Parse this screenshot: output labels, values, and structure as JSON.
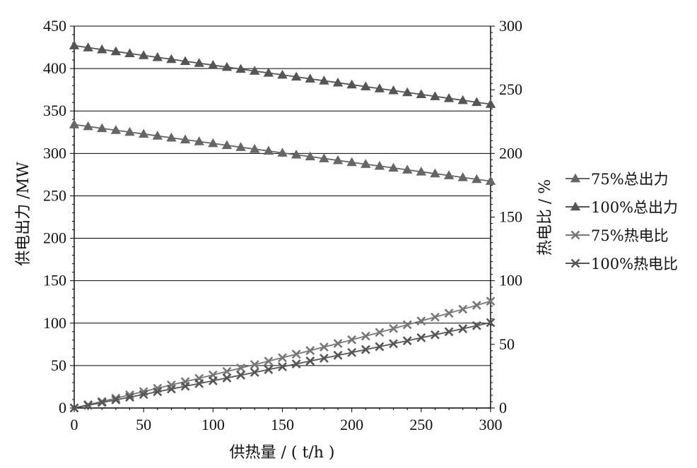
{
  "chart_data": {
    "type": "line",
    "xlabel": "供热量 / ( t/h )",
    "ylabel_left": "供电出力 /MW",
    "ylabel_right": "热电比 / %",
    "x_ticks": [
      0,
      50,
      100,
      150,
      200,
      250,
      300
    ],
    "y_left_ticks": [
      0,
      50,
      100,
      150,
      200,
      250,
      300,
      350,
      400,
      450
    ],
    "y_right_ticks": [
      0,
      50,
      100,
      150,
      200,
      250,
      300
    ],
    "xlim": [
      0,
      300
    ],
    "ylim_left": [
      0,
      450
    ],
    "ylim_right": [
      0,
      300
    ],
    "grid": "horizontal",
    "legend_position": "right",
    "x": [
      0,
      10,
      20,
      30,
      40,
      50,
      60,
      70,
      80,
      90,
      100,
      110,
      120,
      130,
      140,
      150,
      160,
      170,
      180,
      190,
      200,
      210,
      220,
      230,
      240,
      250,
      260,
      270,
      280,
      290,
      300
    ],
    "series": [
      {
        "name": "75%总出力",
        "axis": "left",
        "marker": "triangle",
        "color": "#666666",
        "values": [
          334,
          331.8,
          329.5,
          327.3,
          325.1,
          322.9,
          320.7,
          318.4,
          316.2,
          314,
          311.8,
          309.5,
          307.3,
          305.1,
          302.9,
          300.6,
          298.4,
          296.2,
          294,
          291.8,
          289.5,
          287.3,
          285.1,
          282.9,
          280.6,
          278.4,
          276.2,
          274,
          271.7,
          269.5,
          267.3
        ]
      },
      {
        "name": "100%总出力",
        "axis": "left",
        "marker": "triangle",
        "color": "#555555",
        "values": [
          427,
          424.7,
          422.4,
          420.1,
          417.8,
          415.5,
          413.2,
          410.9,
          408.6,
          406.3,
          404,
          401.7,
          399.4,
          397.1,
          394.8,
          392.5,
          390.2,
          387.9,
          385.6,
          383.3,
          381,
          378.7,
          376.4,
          374.1,
          371.8,
          369.5,
          367.2,
          364.9,
          362.6,
          360.3,
          358
        ]
      },
      {
        "name": "75%热电比",
        "axis": "right",
        "marker": "x",
        "color": "#777777",
        "values": [
          0,
          2.6,
          5.1,
          7.7,
          10.3,
          12.9,
          15.5,
          18.1,
          20.7,
          23.3,
          26,
          28.7,
          31.4,
          34.1,
          36.8,
          39.5,
          42.3,
          45.1,
          47.9,
          50.7,
          53.6,
          56.5,
          59.4,
          62.4,
          65.4,
          68.4,
          71.4,
          74.5,
          77.6,
          80.7,
          83.9
        ]
      },
      {
        "name": "100%热电比",
        "axis": "right",
        "marker": "x",
        "color": "#555555",
        "values": [
          0,
          2.1,
          4.3,
          6.4,
          8.5,
          10.6,
          12.8,
          14.9,
          17.1,
          19.2,
          21.4,
          23.6,
          25.8,
          28,
          30.2,
          32.4,
          34.6,
          36.9,
          39.1,
          41.4,
          43.6,
          45.9,
          48.2,
          50.5,
          52.8,
          55.2,
          57.5,
          59.9,
          62.3,
          64.7,
          67.1
        ]
      }
    ]
  }
}
